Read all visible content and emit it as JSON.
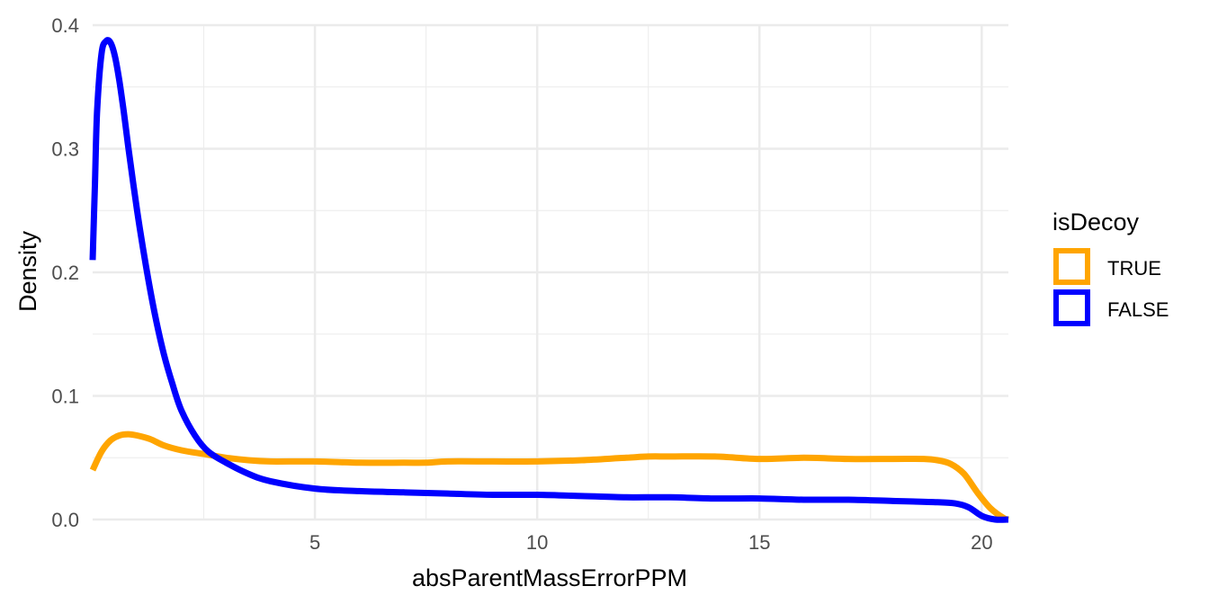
{
  "chart_data": {
    "type": "line",
    "subtype": "density",
    "title": "",
    "xlabel": "absParentMassErrorPPM",
    "ylabel": "Density",
    "xlim": [
      0,
      20.6
    ],
    "ylim": [
      0,
      0.4
    ],
    "x_ticks": [
      5,
      10,
      15,
      20
    ],
    "x_tick_labels": [
      "5",
      "10",
      "15",
      "20"
    ],
    "y_ticks": [
      0.0,
      0.1,
      0.2,
      0.3,
      0.4
    ],
    "y_tick_labels": [
      "0.0",
      "0.1",
      "0.2",
      "0.3",
      "0.4"
    ],
    "grid": true,
    "legend": {
      "title": "isDecoy",
      "position": "right"
    },
    "series": [
      {
        "name": "TRUE",
        "color": "#FFA500",
        "x": [
          0,
          0.2,
          0.4,
          0.6,
          0.8,
          1.0,
          1.3,
          1.6,
          2.0,
          2.5,
          3.0,
          3.5,
          4.0,
          5.0,
          6.0,
          7.0,
          7.5,
          8.0,
          9.0,
          10.0,
          11.0,
          12.0,
          12.5,
          13.0,
          14.0,
          15.0,
          16.0,
          17.0,
          18.0,
          18.7,
          19.0,
          19.3,
          19.6,
          19.9,
          20.2,
          20.5,
          20.6
        ],
        "y": [
          0.04,
          0.055,
          0.064,
          0.068,
          0.069,
          0.068,
          0.065,
          0.06,
          0.056,
          0.053,
          0.05,
          0.048,
          0.047,
          0.047,
          0.046,
          0.046,
          0.046,
          0.047,
          0.047,
          0.047,
          0.048,
          0.05,
          0.051,
          0.051,
          0.051,
          0.049,
          0.05,
          0.049,
          0.049,
          0.049,
          0.048,
          0.045,
          0.037,
          0.022,
          0.009,
          0.001,
          0.0
        ]
      },
      {
        "name": "FALSE",
        "color": "#0000FF",
        "x": [
          0,
          0.05,
          0.1,
          0.2,
          0.3,
          0.4,
          0.5,
          0.6,
          0.7,
          0.8,
          1.0,
          1.2,
          1.4,
          1.6,
          1.8,
          2.0,
          2.3,
          2.6,
          3.0,
          3.5,
          4.0,
          5.0,
          6.0,
          7.0,
          8.0,
          9.0,
          10.0,
          11.0,
          12.0,
          13.0,
          14.0,
          15.0,
          16.0,
          17.0,
          18.0,
          19.0,
          19.4,
          19.7,
          20.0,
          20.3,
          20.6
        ],
        "y": [
          0.21,
          0.27,
          0.33,
          0.377,
          0.387,
          0.386,
          0.375,
          0.355,
          0.33,
          0.302,
          0.25,
          0.205,
          0.166,
          0.134,
          0.109,
          0.088,
          0.068,
          0.055,
          0.046,
          0.037,
          0.031,
          0.025,
          0.023,
          0.022,
          0.021,
          0.02,
          0.02,
          0.019,
          0.018,
          0.018,
          0.017,
          0.017,
          0.016,
          0.016,
          0.015,
          0.014,
          0.013,
          0.01,
          0.003,
          0.0,
          0.0
        ]
      }
    ]
  }
}
